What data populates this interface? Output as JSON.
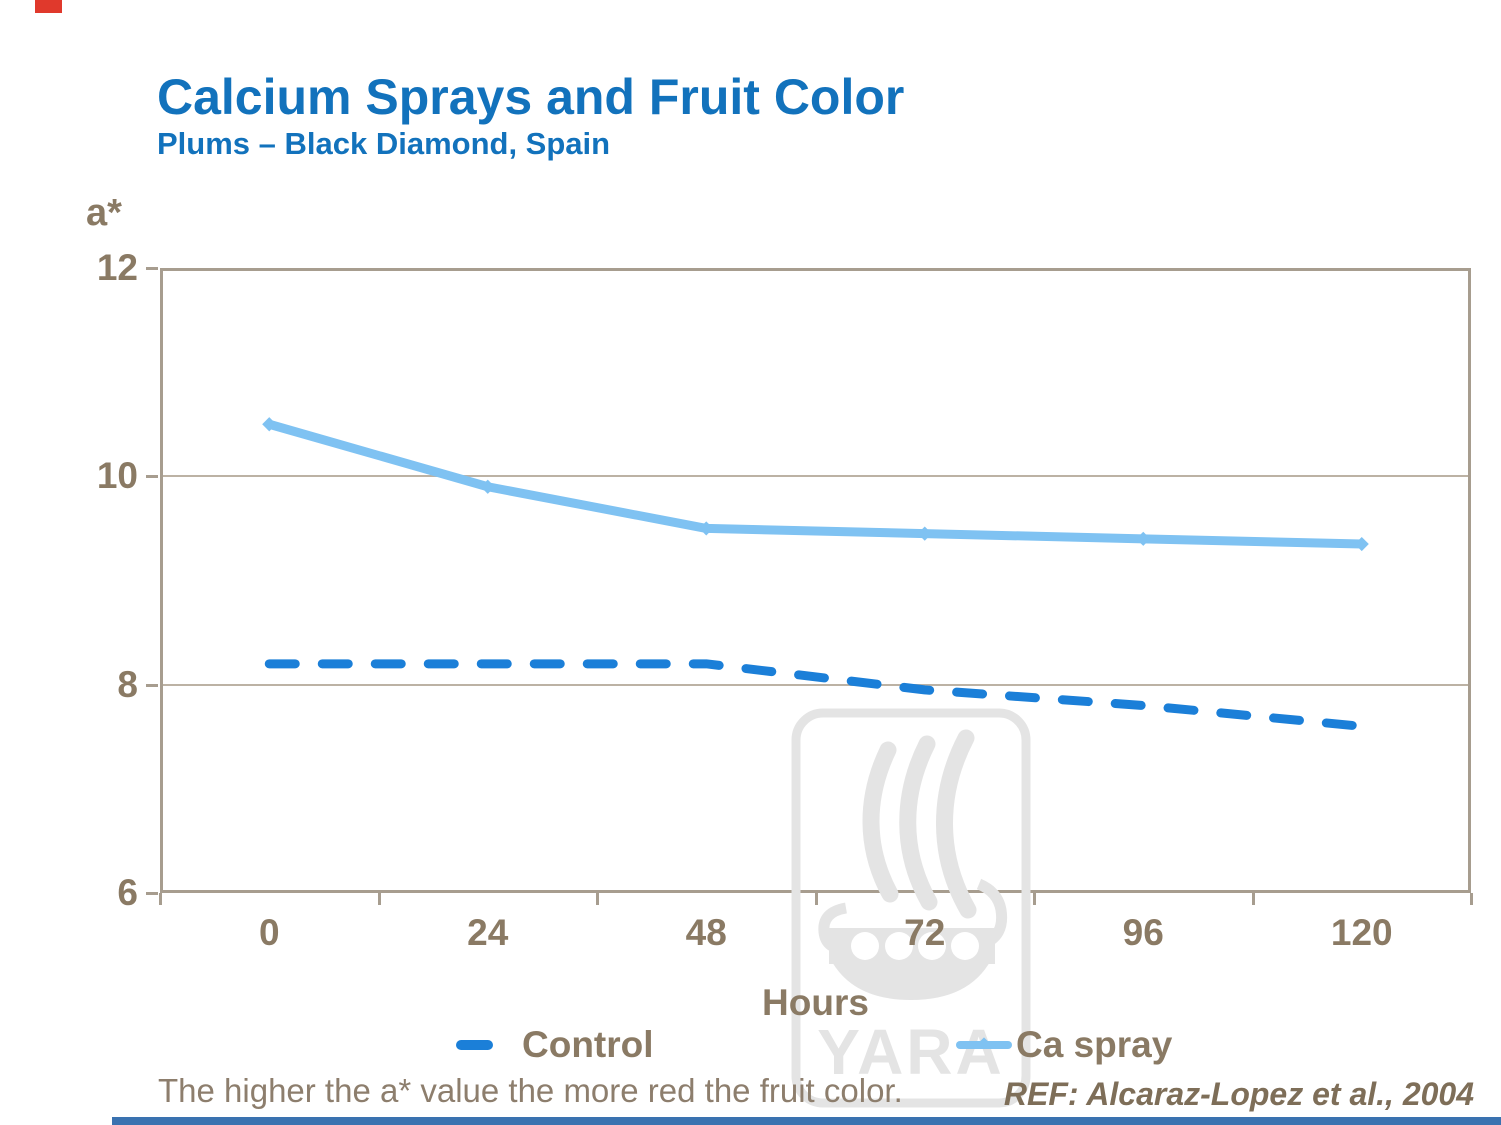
{
  "slide": {
    "title": "Calcium Sprays and Fruit Color",
    "subtitle": "Plums – Black Diamond, Spain",
    "title_color": "#1272BC",
    "accent_red": "#E0392C",
    "bottom_bar_blue": "#3A72B0",
    "footnote": "The higher the a* value the more red the fruit color.",
    "reference": "REF: Alcaraz-Lopez et al., 2004"
  },
  "watermark": {
    "text": "YARA"
  },
  "chart_data": {
    "type": "line",
    "categories": [
      "0",
      "24",
      "48",
      "72",
      "96",
      "120"
    ],
    "x_hours": [
      0,
      24,
      48,
      72,
      96,
      120
    ],
    "series": [
      {
        "name": "Control",
        "style": "dashed",
        "color": "#1B7FD8",
        "values": [
          8.2,
          8.2,
          8.2,
          7.95,
          7.8,
          7.6
        ]
      },
      {
        "name": "Ca spray",
        "style": "solid",
        "color": "#7FC2F2",
        "values": [
          10.5,
          9.9,
          9.5,
          9.45,
          9.4,
          9.35
        ]
      }
    ],
    "title": "",
    "xlabel": "Hours",
    "ylabel": "a*",
    "ylim": [
      6,
      12
    ],
    "yticks": [
      6,
      8,
      10,
      12
    ],
    "gridlines": [
      8,
      10
    ],
    "grid": true,
    "legend_position": "bottom"
  }
}
